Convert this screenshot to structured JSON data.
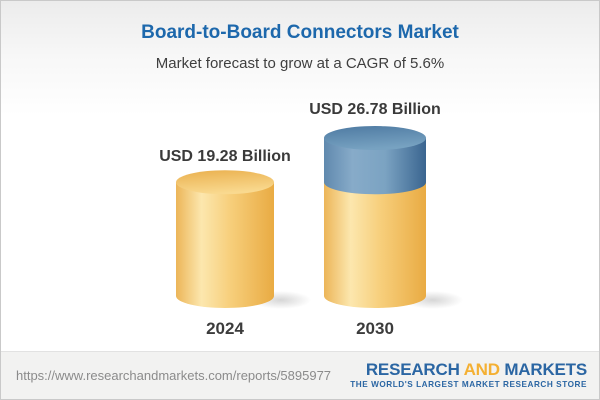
{
  "header": {
    "title": "Board-to-Board Connectors Market",
    "subtitle": "Market forecast to grow at a CAGR of 5.6%"
  },
  "chart_data": {
    "type": "bar",
    "subtype": "3d-cylinder-infographic",
    "title": "Board-to-Board Connectors Market",
    "subtitle": "Market forecast to grow at a CAGR of 5.6%",
    "unit": "USD Billion",
    "cagr_pct": 5.6,
    "categories": [
      "2024",
      "2030"
    ],
    "values": [
      19.28,
      26.78
    ],
    "ylim": [
      0,
      26.78
    ],
    "grid": false,
    "legend": false,
    "bars": [
      {
        "category": "2024",
        "total": 19.28,
        "label": "USD 19.28 Billion",
        "segments": [
          {
            "name": "market-size-2024",
            "value": 19.28,
            "palette": "gold"
          }
        ]
      },
      {
        "category": "2030",
        "total": 26.78,
        "label": "USD 26.78 Billion",
        "segments": [
          {
            "name": "base-2024-level",
            "value": 19.28,
            "palette": "gold"
          },
          {
            "name": "forecast-growth",
            "value": 7.5,
            "palette": "blue"
          }
        ]
      }
    ],
    "colors": {
      "gold_edge_left": "#ecb558",
      "gold_light": "#fce7ae",
      "gold_mid": "#f7cf7c",
      "gold_edge_right": "#e9ab43",
      "blue_edge_left": "#6089ae",
      "blue_light": "#87abc9",
      "blue_mid": "#7ba3c2",
      "blue_edge_right": "#3a6590",
      "title_blue": "#1d68ac"
    }
  },
  "footer": {
    "url": "https://www.researchandmarkets.com/reports/5895977",
    "logo": {
      "word1": "RESEARCH",
      "word2": "AND",
      "word3": "MARKETS",
      "tagline": "THE WORLD'S LARGEST MARKET RESEARCH STORE"
    }
  }
}
